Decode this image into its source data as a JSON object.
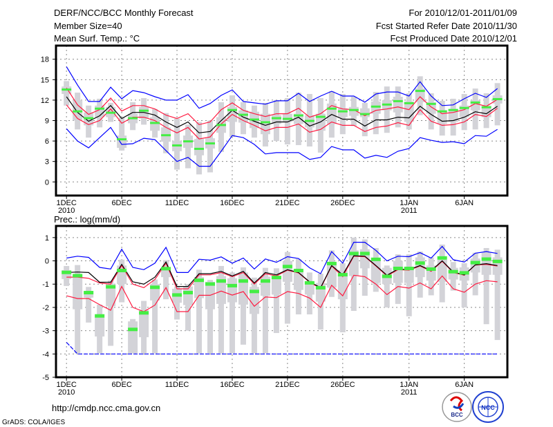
{
  "header": {
    "title": "DERF/NCC/BCC Monthly Forecast",
    "member_size": "Member Size=40",
    "variable": "Mean Surf. Temp.: °C",
    "period": "For 2010/12/01-2011/01/09",
    "started": "Fcst Started Refer Date 2010/11/30",
    "produced": "Fcst Produced Date 2010/12/01"
  },
  "footer": {
    "url": "http://cmdp.ncc.cma.gov.cn",
    "credit": "GrADS: COLA/IGES",
    "logo_left": "BCC",
    "logo_right": "NCC"
  },
  "colors": {
    "max_min": "#0000ff",
    "spread": "#ff1a40",
    "mean": "#000000",
    "obs": "#44ee44",
    "box": "#d3d3d8",
    "grid": "#888888"
  },
  "chart_data": [
    {
      "type": "line",
      "title": "Mean Surf. Temp.: °C",
      "x_ticks": [
        {
          "day": 1,
          "label": "1DEC",
          "year": "2010"
        },
        {
          "day": 6,
          "label": "6DEC"
        },
        {
          "day": 11,
          "label": "11DEC"
        },
        {
          "day": 16,
          "label": "16DEC"
        },
        {
          "day": 21,
          "label": "21DEC"
        },
        {
          "day": 26,
          "label": "26DEC"
        },
        {
          "day": 32,
          "label": "1JAN",
          "year": "2011"
        },
        {
          "day": 37,
          "label": "6JAN"
        }
      ],
      "y_ticks": [
        0,
        3,
        6,
        9,
        12,
        15,
        18
      ],
      "ylim": [
        -2,
        20
      ],
      "xlim": [
        0.05,
        40.9
      ],
      "grid": true,
      "series": {
        "max": [
          16.9,
          14.2,
          11.8,
          11.8,
          13.9,
          12.2,
          13.4,
          13.1,
          12.5,
          12.0,
          12.0,
          12.8,
          10.8,
          11.5,
          12.7,
          13.5,
          11.8,
          11.6,
          11.4,
          11.9,
          11.9,
          13.0,
          11.8,
          12.6,
          13.3,
          12.6,
          12.6,
          11.7,
          12.9,
          13.2,
          13.2,
          12.6,
          14.7,
          12.6,
          11.2,
          11.3,
          12.2,
          13.0,
          12.4,
          13.7
        ],
        "min": [
          7.8,
          6.0,
          5.0,
          6.5,
          8.0,
          5.5,
          5.6,
          6.4,
          6.2,
          4.6,
          3.0,
          3.6,
          2.3,
          2.3,
          4.5,
          6.8,
          6.5,
          5.5,
          4.1,
          4.3,
          4.3,
          4.3,
          3.3,
          3.6,
          5.2,
          4.7,
          4.7,
          3.5,
          3.9,
          3.6,
          4.5,
          4.9,
          6.5,
          6.1,
          5.8,
          5.9,
          5.6,
          6.8,
          6.7,
          7.7
        ],
        "mean": [
          12.5,
          10.2,
          8.9,
          9.7,
          11.2,
          9.3,
          10.2,
          10.2,
          9.8,
          8.8,
          8.0,
          8.8,
          7.2,
          7.4,
          9.0,
          10.5,
          9.5,
          8.9,
          8.3,
          8.8,
          8.8,
          9.5,
          8.2,
          8.8,
          9.9,
          9.2,
          9.2,
          8.2,
          9.1,
          9.1,
          9.5,
          9.4,
          11.1,
          9.9,
          8.9,
          9.0,
          9.5,
          10.3,
          10.0,
          11.1
        ],
        "upper": [
          13.8,
          11.3,
          9.9,
          10.6,
          12.3,
          10.4,
          11.2,
          11.2,
          10.7,
          9.8,
          9.3,
          10.0,
          8.4,
          8.8,
          10.6,
          11.6,
          10.5,
          10.0,
          9.6,
          10.0,
          10.0,
          10.8,
          9.5,
          10.0,
          11.2,
          10.7,
          10.6,
          9.7,
          10.5,
          10.7,
          11.0,
          10.6,
          12.5,
          11.0,
          10.0,
          10.2,
          10.6,
          11.5,
          11.1,
          12.1
        ],
        "lower": [
          11.3,
          9.3,
          8.4,
          9.0,
          10.7,
          8.6,
          9.5,
          9.5,
          9.0,
          8.0,
          7.2,
          8.0,
          6.3,
          6.6,
          8.5,
          9.9,
          9.0,
          8.3,
          7.5,
          8.0,
          8.0,
          8.5,
          7.3,
          7.7,
          8.8,
          8.3,
          8.3,
          7.4,
          8.0,
          8.2,
          8.7,
          8.3,
          10.6,
          8.9,
          8.3,
          8.4,
          8.8,
          9.9,
          9.6,
          10.8
        ],
        "observed": [
          13.5,
          10.3,
          9.3,
          10.7,
          10.1,
          6.2,
          9.3,
          10.4,
          8.6,
          6.8,
          5.3,
          5.9,
          4.8,
          5.6,
          8.3,
          10.5,
          9.8,
          9.1,
          8.7,
          9.3,
          9.2,
          9.7,
          8.9,
          9.5,
          10.7,
          10.3,
          10.5,
          9.9,
          11.0,
          11.3,
          11.8,
          11.5,
          13.3,
          11.4,
          10.3,
          10.5,
          10.8,
          11.6,
          10.9,
          12.1
        ],
        "box": [
          [
            11.2,
            12.9,
            14.0,
            14.8
          ],
          [
            7.7,
            9.0,
            12.0,
            13.1
          ],
          [
            6.5,
            8.3,
            10.2,
            11.2
          ],
          [
            8.0,
            9.5,
            11.2,
            12.2
          ],
          [
            8.8,
            9.5,
            11.0,
            11.6
          ],
          [
            4.6,
            5.0,
            6.8,
            9.5
          ],
          [
            7.6,
            8.6,
            10.0,
            11.7
          ],
          [
            8.4,
            9.3,
            11.0,
            12.3
          ],
          [
            6.5,
            7.5,
            9.5,
            10.7
          ],
          [
            4.2,
            5.9,
            8.0,
            10.1
          ],
          [
            1.8,
            4.5,
            6.0,
            9.3
          ],
          [
            2.0,
            5.0,
            6.8,
            8.4
          ],
          [
            1.1,
            3.9,
            6.3,
            8.8
          ],
          [
            1.4,
            4.9,
            6.4,
            9.0
          ],
          [
            4.4,
            7.2,
            9.5,
            11.7
          ],
          [
            6.6,
            8.8,
            11.0,
            12.7
          ],
          [
            7.0,
            8.7,
            10.5,
            11.7
          ],
          [
            6.5,
            7.9,
            10.3,
            11.2
          ],
          [
            5.2,
            7.0,
            10.0,
            11.6
          ],
          [
            6.0,
            8.5,
            9.8,
            12.0
          ],
          [
            5.5,
            8.8,
            10.0,
            12.3
          ],
          [
            5.4,
            8.5,
            10.0,
            13.1
          ],
          [
            5.2,
            8.0,
            9.8,
            12.9
          ],
          [
            4.3,
            7.5,
            10.0,
            12.3
          ],
          [
            6.5,
            8.5,
            11.5,
            13.3
          ],
          [
            7.0,
            9.5,
            10.8,
            12.9
          ],
          [
            8.2,
            9.7,
            11.0,
            12.5
          ],
          [
            6.7,
            9.5,
            10.8,
            11.6
          ],
          [
            7.0,
            10.0,
            11.8,
            13.2
          ],
          [
            7.2,
            10.5,
            12.0,
            14.0
          ],
          [
            8.0,
            10.2,
            12.5,
            14.0
          ],
          [
            7.7,
            8.8,
            11.8,
            13.0
          ],
          [
            9.8,
            11.7,
            13.7,
            15.5
          ],
          [
            7.7,
            10.0,
            11.7,
            13.0
          ],
          [
            6.8,
            8.5,
            10.5,
            11.9
          ],
          [
            6.8,
            8.8,
            10.7,
            12.2
          ],
          [
            7.6,
            9.5,
            11.2,
            12.9
          ],
          [
            7.7,
            10.5,
            12.0,
            13.7
          ],
          [
            7.9,
            9.5,
            11.2,
            13.0
          ],
          [
            8.3,
            11.5,
            12.7,
            14.5
          ]
        ]
      }
    },
    {
      "type": "line",
      "title": "Prec.: log(mm/d)",
      "x_ticks": [
        {
          "day": 1,
          "label": "1DEC",
          "year": "2010"
        },
        {
          "day": 6,
          "label": "6DEC"
        },
        {
          "day": 11,
          "label": "11DEC"
        },
        {
          "day": 16,
          "label": "16DEC"
        },
        {
          "day": 21,
          "label": "21DEC"
        },
        {
          "day": 26,
          "label": "26DEC"
        },
        {
          "day": 32,
          "label": "1JAN",
          "year": "2011"
        },
        {
          "day": 37,
          "label": "6JAN"
        }
      ],
      "y_ticks": [
        -5,
        -4,
        -3,
        -2,
        -1,
        0,
        1
      ],
      "ylim": [
        -5,
        1.5
      ],
      "xlim": [
        0.05,
        40.9
      ],
      "grid": true,
      "series": {
        "max": [
          0.12,
          0.2,
          0.15,
          -0.28,
          -0.35,
          0.5,
          -0.28,
          -0.38,
          -0.1,
          0.58,
          -0.5,
          -0.5,
          0.07,
          0.03,
          0.17,
          -0.1,
          0.12,
          -0.35,
          0.08,
          -0.06,
          0.18,
          0.1,
          -0.3,
          -0.55,
          0.4,
          -0.1,
          0.8,
          0.8,
          0.45,
          0.0,
          0.2,
          0.18,
          0.35,
          0.12,
          0.62,
          0.05,
          -0.05,
          0.33,
          0.4,
          0.32
        ],
        "min": [
          -3.5,
          -4,
          -4,
          -4,
          -4,
          -4,
          -4,
          -4,
          -4,
          -4,
          -4,
          -4,
          -4,
          -4,
          -4,
          -4,
          -4,
          -4,
          -4,
          -4,
          -4,
          -4,
          -4,
          -4,
          -4,
          -4,
          -4,
          -4,
          -4,
          -4,
          -4,
          -4,
          -4,
          -4,
          -4,
          -4,
          -4,
          -4,
          -4,
          -4
        ],
        "mean": [
          -0.5,
          -0.48,
          -0.5,
          -0.92,
          -0.92,
          -0.15,
          -0.9,
          -1.0,
          -0.7,
          -0.05,
          -1.1,
          -1.1,
          -0.55,
          -0.55,
          -0.45,
          -0.65,
          -0.45,
          -0.95,
          -0.5,
          -0.6,
          -0.38,
          -0.5,
          -0.9,
          -1.15,
          -0.2,
          -0.6,
          0.22,
          0.2,
          -0.2,
          -0.62,
          -0.35,
          -0.38,
          -0.2,
          -0.42,
          0.0,
          -0.48,
          -0.6,
          -0.17,
          -0.12,
          -0.2
        ],
        "upper": [
          -0.7,
          -0.7,
          -0.75,
          -0.95,
          -1.0,
          -0.2,
          -1.0,
          -1.15,
          -0.8,
          -0.1,
          -1.2,
          -1.2,
          -0.6,
          -0.6,
          -0.5,
          -0.68,
          -0.5,
          -1.0,
          -0.55,
          -0.65,
          -0.4,
          -0.52,
          -0.92,
          -1.18,
          -0.22,
          -0.68,
          0.2,
          0.18,
          -0.22,
          -0.65,
          -0.38,
          -0.4,
          -0.22,
          -0.45,
          -0.02,
          -0.5,
          -0.62,
          -0.18,
          -0.15,
          -0.22
        ],
        "lower": [
          -1.5,
          -1.62,
          -1.62,
          -1.88,
          -2.12,
          -1.1,
          -2.0,
          -2.18,
          -1.9,
          -1.15,
          -2.18,
          -2.18,
          -1.48,
          -1.48,
          -1.3,
          -1.47,
          -1.32,
          -1.95,
          -1.55,
          -1.58,
          -1.32,
          -1.4,
          -1.6,
          -2.0,
          -1.05,
          -1.5,
          -0.62,
          -0.68,
          -1.0,
          -1.45,
          -1.1,
          -1.17,
          -0.95,
          -1.2,
          -0.65,
          -1.2,
          -1.35,
          -1.0,
          -0.85,
          -0.9
        ],
        "observed": [
          -0.48,
          -0.62,
          -1.35,
          -2.35,
          -1.1,
          -0.4,
          -2.93,
          -2.22,
          -1.12,
          -0.32,
          -1.45,
          -1.35,
          -0.82,
          -0.98,
          -0.85,
          -1.05,
          -0.85,
          -1.3,
          -0.85,
          -0.7,
          -0.23,
          -0.4,
          -0.93,
          -1.14,
          -0.1,
          -0.58,
          0.33,
          0.33,
          0.08,
          -0.65,
          -0.31,
          -0.31,
          -0.08,
          -0.34,
          0.14,
          -0.45,
          -0.5,
          -0.06,
          0.09,
          -0.01
        ],
        "box": [
          [
            -1.08,
            -0.78,
            -0.4,
            -0.22
          ],
          [
            -3.97,
            -2.08,
            -0.6,
            -0.18
          ],
          [
            -2.65,
            -1.58,
            -1.3,
            -1.12
          ],
          [
            -3.97,
            -3.25,
            -2.4,
            -1.88
          ],
          [
            -3.65,
            -1.95,
            -1.0,
            -0.85
          ],
          [
            -1.78,
            -1.0,
            -0.2,
            0.05
          ],
          [
            -3.97,
            -3.97,
            -2.6,
            -2.5
          ],
          [
            -3.97,
            -3.28,
            -2.1,
            -1.72
          ],
          [
            -3.97,
            -1.7,
            -1.0,
            -0.8
          ],
          [
            -1.65,
            -0.7,
            -0.3,
            0.03
          ],
          [
            -2.52,
            -1.8,
            -1.2,
            -1.1
          ],
          [
            -3.0,
            -1.9,
            -1.1,
            -1.0
          ],
          [
            -3.97,
            -1.6,
            -0.7,
            -0.38
          ],
          [
            -3.97,
            -2.08,
            -0.9,
            -0.82
          ],
          [
            -3.97,
            -1.85,
            -0.65,
            -0.22
          ],
          [
            -3.97,
            -1.78,
            -0.75,
            -0.5
          ],
          [
            -3.6,
            -1.88,
            -0.5,
            -0.28
          ],
          [
            -3.97,
            -2.28,
            -1.12,
            -0.72
          ],
          [
            -3.97,
            -1.5,
            -0.68,
            -0.3
          ],
          [
            -3.1,
            -1.45,
            -0.65,
            -0.32
          ],
          [
            -2.7,
            -0.9,
            0.0,
            0.38
          ],
          [
            -2.3,
            -1.25,
            -0.35,
            0.08
          ],
          [
            -2.3,
            -1.45,
            -0.9,
            -0.5
          ],
          [
            -2.95,
            -1.75,
            -0.95,
            -0.55
          ],
          [
            -1.55,
            -1.15,
            -0.1,
            0.45
          ],
          [
            -3.07,
            -1.65,
            -0.4,
            -0.1
          ],
          [
            -2.15,
            -0.65,
            0.45,
            1.0
          ],
          [
            -1.5,
            -0.32,
            0.5,
            0.92
          ],
          [
            -1.33,
            -0.95,
            0.05,
            0.55
          ],
          [
            -2.0,
            -1.0,
            -0.3,
            -0.2
          ],
          [
            -1.85,
            -0.95,
            0.0,
            0.28
          ],
          [
            -2.38,
            -0.95,
            -0.25,
            0.28
          ],
          [
            -1.58,
            -0.7,
            0.15,
            0.4
          ],
          [
            -1.48,
            -0.85,
            -0.2,
            0.15
          ],
          [
            -1.78,
            -0.9,
            0.05,
            0.7
          ],
          [
            -1.28,
            -0.8,
            -0.3,
            -0.05
          ],
          [
            -2.0,
            -0.85,
            -0.28,
            -0.1
          ],
          [
            -1.48,
            -0.5,
            0.1,
            0.35
          ],
          [
            -2.72,
            -0.6,
            0.35,
            0.55
          ],
          [
            -3.4,
            -0.6,
            0.15,
            0.48
          ]
        ]
      }
    }
  ]
}
